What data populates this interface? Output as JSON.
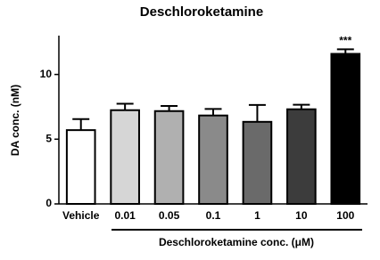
{
  "chart_data": {
    "type": "bar",
    "title": "Deschloroketamine",
    "y_label": "DA conc. (nM)",
    "x_label": "Deschloroketamine conc. (μM)",
    "categories": [
      "Vehicle",
      "0.01",
      "0.05",
      "0.1",
      "1",
      "10",
      "100"
    ],
    "values": [
      5.7,
      7.24,
      7.17,
      6.83,
      6.34,
      7.31,
      11.59
    ],
    "errors": [
      0.85,
      0.5,
      0.4,
      0.5,
      1.3,
      0.35,
      0.35
    ],
    "colors": [
      "#ffffff",
      "#d6d6d6",
      "#b0b0b0",
      "#8a8a8a",
      "#6a6a6a",
      "#3c3c3c",
      "#000000"
    ],
    "annotations": [
      {
        "category": "100",
        "text": "***"
      }
    ],
    "ylim": [
      0,
      13
    ],
    "yticks": [
      0,
      5,
      10
    ]
  }
}
